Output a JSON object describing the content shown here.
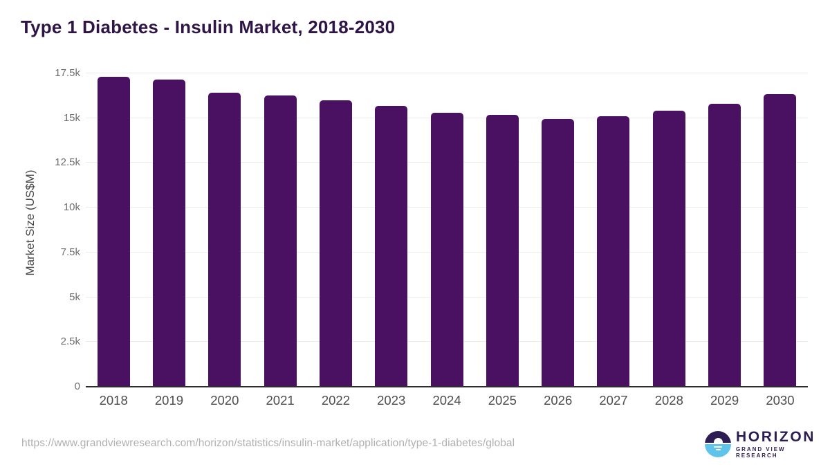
{
  "title": "Type 1 Diabetes - Insulin Market, 2018-2030",
  "colors": {
    "bar": "#4A1162",
    "title": "#2E1545",
    "axis_line": "#2E2E2E",
    "gridline": "#EBEBEB",
    "tick_label": "#6F6F6F",
    "x_label": "#4D4D4D",
    "url_text": "#B0B0B0",
    "logo_dark": "#2E1D52",
    "logo_blue": "#5FC3EA"
  },
  "chart_data": {
    "type": "bar",
    "title": "Type 1 Diabetes - Insulin Market, 2018-2030",
    "xlabel": "",
    "ylabel": "Market Size (US$M)",
    "categories": [
      "2018",
      "2019",
      "2020",
      "2021",
      "2022",
      "2023",
      "2024",
      "2025",
      "2026",
      "2027",
      "2028",
      "2029",
      "2030"
    ],
    "values": [
      17300,
      17150,
      16400,
      16250,
      16000,
      15700,
      15300,
      15200,
      14950,
      15100,
      15400,
      15800,
      16350
    ],
    "ylim": [
      0,
      17500
    ],
    "ytick_values": [
      0,
      2500,
      5000,
      7500,
      10000,
      12500,
      15000,
      17500
    ],
    "ytick_labels": [
      "0",
      "2.5k",
      "5k",
      "7.5k",
      "10k",
      "12.5k",
      "15k",
      "17.5k"
    ],
    "grid": "horizontal",
    "legend": "none",
    "bar_color": "#4A1162"
  },
  "footer": {
    "url": "https://www.grandviewresearch.com/horizon/statistics/insulin-market/application/type-1-diabetes/global",
    "logo": {
      "name": "HORIZON",
      "subtitle": "GRAND VIEW RESEARCH"
    }
  }
}
